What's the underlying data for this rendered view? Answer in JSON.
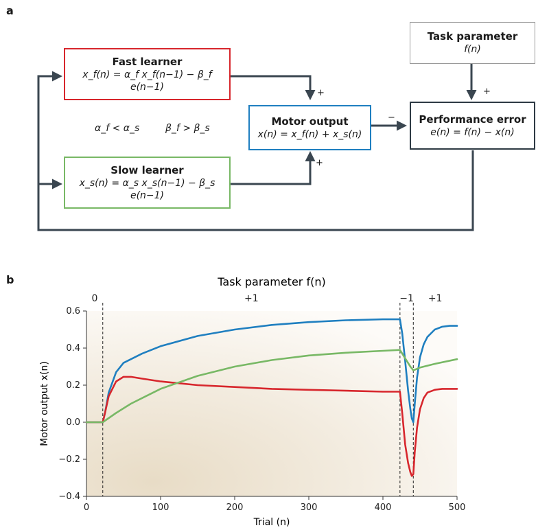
{
  "panel_a": {
    "label": "a",
    "fast": {
      "title": "Fast learner",
      "eq": "x_f(n) = α_f x_f(n−1) − β_f e(n−1)"
    },
    "slow": {
      "title": "Slow learner",
      "eq": "x_s(n) = α_s x_s(n−1) − β_s e(n−1)"
    },
    "motor": {
      "title": "Motor output",
      "eq": "x(n) = x_f(n) + x_s(n)"
    },
    "error": {
      "title": "Performance error",
      "eq": "e(n) = f(n) − x(n)"
    },
    "task": {
      "title": "Task parameter",
      "eq": "f(n)"
    },
    "relation_alpha": "α_f < α_s",
    "relation_beta": "β_f > β_s",
    "signs": {
      "fast_plus": "+",
      "slow_plus": "+",
      "task_plus": "+",
      "motor_minus": "−"
    },
    "colors": {
      "fast": "#d7262c",
      "slow": "#78b865",
      "motor": "#1f7fc0",
      "error": "#2e3a44",
      "arrow": "#3a4650"
    }
  },
  "panel_b": {
    "label": "b",
    "top_title": "Task parameter f(n)",
    "phases": [
      {
        "label": "0",
        "start": 0,
        "end": 22
      },
      {
        "label": "+1",
        "start": 22,
        "end": 423
      },
      {
        "label": "−1",
        "start": 423,
        "end": 441
      },
      {
        "label": "+1",
        "start": 441,
        "end": 500
      }
    ],
    "boundaries": [
      22,
      423,
      441
    ]
  },
  "chart_data": {
    "type": "line",
    "xlabel": "Trial (n)",
    "ylabel": "Motor output x(n)",
    "xlim": [
      0,
      500
    ],
    "ylim": [
      -0.4,
      0.6
    ],
    "xticks": [
      0,
      100,
      200,
      300,
      400,
      500
    ],
    "yticks": [
      -0.4,
      -0.2,
      0.0,
      0.2,
      0.4,
      0.6
    ],
    "grid": false,
    "series": [
      {
        "key": "total",
        "color": "#1f7fc0",
        "x": [
          0,
          22,
          25,
          30,
          40,
          50,
          75,
          100,
          150,
          200,
          250,
          300,
          350,
          400,
          423,
          426,
          430,
          434,
          437,
          439,
          441,
          443,
          446,
          450,
          455,
          460,
          470,
          480,
          490,
          500
        ],
        "y": [
          0,
          0,
          0.05,
          0.16,
          0.27,
          0.32,
          0.37,
          0.41,
          0.465,
          0.5,
          0.525,
          0.54,
          0.55,
          0.555,
          0.555,
          0.48,
          0.33,
          0.17,
          0.07,
          0.02,
          0.0,
          0.1,
          0.24,
          0.35,
          0.42,
          0.46,
          0.5,
          0.515,
          0.52,
          0.52
        ]
      },
      {
        "key": "fast",
        "color": "#d7262c",
        "x": [
          0,
          22,
          25,
          30,
          40,
          50,
          60,
          75,
          100,
          150,
          200,
          250,
          300,
          350,
          400,
          423,
          426,
          430,
          434,
          437,
          439,
          441,
          443,
          446,
          450,
          455,
          460,
          470,
          480,
          490,
          500
        ],
        "y": [
          0,
          0,
          0.05,
          0.14,
          0.22,
          0.245,
          0.245,
          0.235,
          0.22,
          0.2,
          0.19,
          0.18,
          0.175,
          0.17,
          0.165,
          0.165,
          0.05,
          -0.12,
          -0.22,
          -0.27,
          -0.29,
          -0.28,
          -0.16,
          -0.03,
          0.07,
          0.13,
          0.16,
          0.175,
          0.18,
          0.18,
          0.18
        ]
      },
      {
        "key": "slow",
        "color": "#78b865",
        "x": [
          0,
          22,
          40,
          60,
          80,
          100,
          150,
          200,
          250,
          300,
          350,
          400,
          423,
          430,
          437,
          441,
          450,
          470,
          500
        ],
        "y": [
          0,
          0,
          0.05,
          0.1,
          0.14,
          0.18,
          0.25,
          0.3,
          0.335,
          0.36,
          0.375,
          0.385,
          0.39,
          0.345,
          0.3,
          0.28,
          0.295,
          0.315,
          0.34
        ]
      }
    ]
  }
}
